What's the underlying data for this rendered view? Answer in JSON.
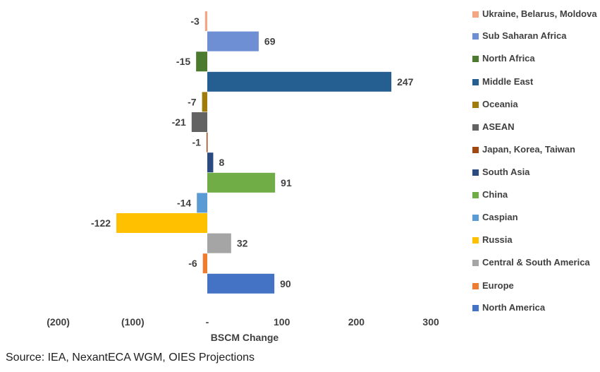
{
  "chart_data": {
    "type": "bar",
    "orientation": "horizontal",
    "xlabel": "BSCM Change",
    "xlim": [
      -200,
      300
    ],
    "x_ticks": [
      {
        "value": -200,
        "label": "(200)"
      },
      {
        "value": -100,
        "label": "(100)"
      },
      {
        "value": 0,
        "label": "-"
      },
      {
        "value": 100,
        "label": "100"
      },
      {
        "value": 200,
        "label": "200"
      },
      {
        "value": 300,
        "label": "300"
      }
    ],
    "legend_position": "right",
    "grid": false,
    "series": [
      {
        "name": "Ukraine, Belarus, Moldova",
        "value": -3,
        "label": "-3",
        "color": "#F4A582"
      },
      {
        "name": "Sub Saharan Africa",
        "value": 69,
        "label": "69",
        "color": "#6E8FD4"
      },
      {
        "name": "North Africa",
        "value": -15,
        "label": "-15",
        "color": "#4C7A2E"
      },
      {
        "name": "Middle East",
        "value": 247,
        "label": "247",
        "color": "#255E91"
      },
      {
        "name": "Oceania",
        "value": -7,
        "label": "-7",
        "color": "#9E7B0A"
      },
      {
        "name": "ASEAN",
        "value": -21,
        "label": "-21",
        "color": "#636363"
      },
      {
        "name": "Japan, Korea, Taiwan",
        "value": -1,
        "label": "-1",
        "color": "#A0480F"
      },
      {
        "name": "South Asia",
        "value": 8,
        "label": "8",
        "color": "#2B4A80"
      },
      {
        "name": "China",
        "value": 91,
        "label": "91",
        "color": "#70AD47"
      },
      {
        "name": "Caspian",
        "value": -14,
        "label": "-14",
        "color": "#5B9BD5"
      },
      {
        "name": "Russia",
        "value": -122,
        "label": "-122",
        "color": "#FFC000"
      },
      {
        "name": "Central & South America",
        "value": 32,
        "label": "32",
        "color": "#A5A5A5"
      },
      {
        "name": "Europe",
        "value": -6,
        "label": "-6",
        "color": "#ED7D31"
      },
      {
        "name": "North America",
        "value": 90,
        "label": "90",
        "color": "#4472C4"
      }
    ]
  },
  "legend": {
    "items": [
      {
        "label": "Ukraine, Belarus, Moldova",
        "color": "#F4A582"
      },
      {
        "label": "Sub Saharan Africa",
        "color": "#6E8FD4"
      },
      {
        "label": "North Africa",
        "color": "#4C7A2E"
      },
      {
        "label": "Middle East",
        "color": "#255E91"
      },
      {
        "label": "Oceania",
        "color": "#9E7B0A"
      },
      {
        "label": "ASEAN",
        "color": "#636363"
      },
      {
        "label": "Japan, Korea, Taiwan",
        "color": "#A0480F"
      },
      {
        "label": "South Asia",
        "color": "#2B4A80"
      },
      {
        "label": "China",
        "color": "#70AD47"
      },
      {
        "label": "Caspian",
        "color": "#5B9BD5"
      },
      {
        "label": "Russia",
        "color": "#FFC000"
      },
      {
        "label": "Central & South America",
        "color": "#A5A5A5"
      },
      {
        "label": "Europe",
        "color": "#ED7D31"
      },
      {
        "label": "North America",
        "color": "#4472C4"
      }
    ]
  },
  "source": "Source: IEA, NexantECA WGM, OIES Projections"
}
